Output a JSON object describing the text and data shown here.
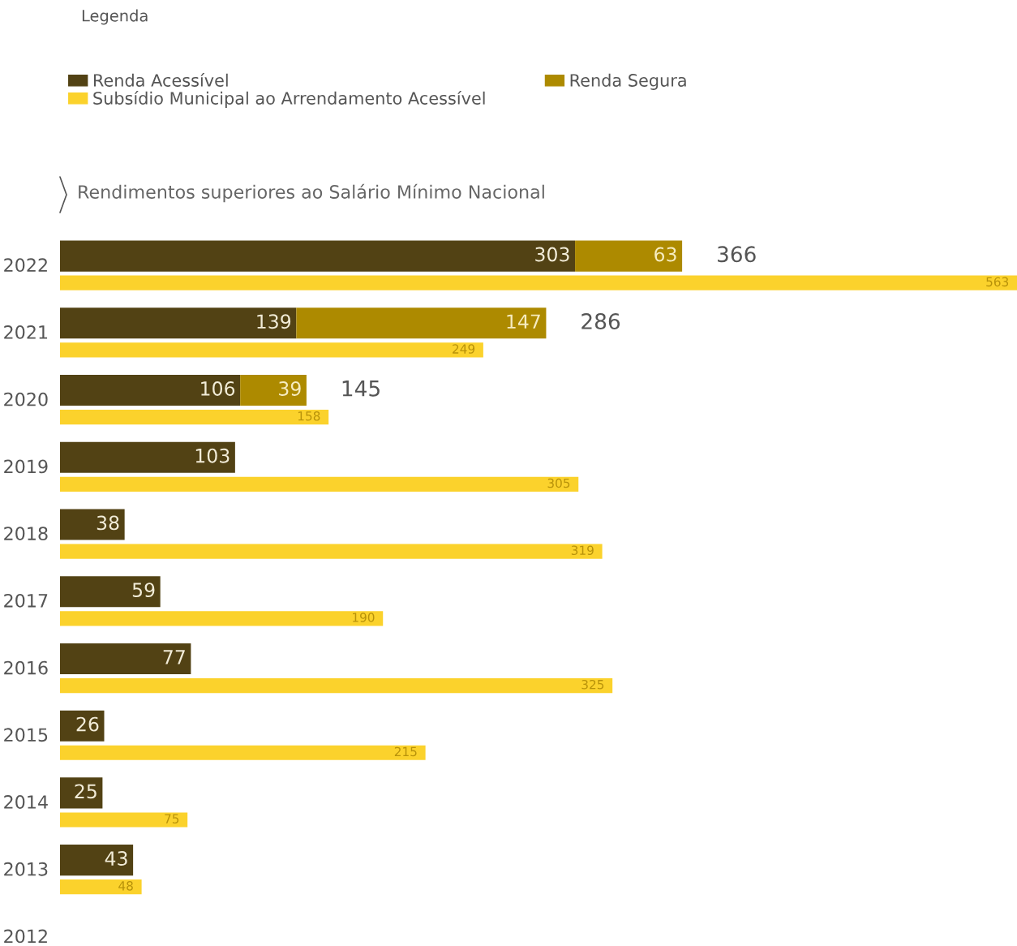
{
  "chart_data": [
    {
      "type": "bar",
      "orientation": "horizontal",
      "stacked": true,
      "title": "Rendimentos superiores ao Salário Mínimo Nacional",
      "legend_title": "Legenda",
      "legend": "top left",
      "categories": [
        "2022",
        "2021",
        "2020",
        "2019",
        "2018",
        "2017",
        "2016",
        "2015",
        "2014",
        "2013",
        "2012"
      ],
      "series": [
        {
          "name": "Renda Acessível",
          "color": "#524214",
          "values": [
            303,
            139,
            106,
            103,
            38,
            59,
            77,
            26,
            25,
            43,
            null
          ]
        },
        {
          "name": "Renda Segura",
          "color": "#ad8a00",
          "values": [
            63,
            147,
            39,
            null,
            null,
            null,
            null,
            null,
            null,
            null,
            null
          ]
        }
      ],
      "totals": [
        "366",
        "286",
        "145",
        null,
        null,
        null,
        null,
        null,
        null,
        null,
        null
      ],
      "data_labels": true,
      "xlim": [
        0,
        563
      ],
      "tick_labels": "y"
    },
    {
      "type": "bar",
      "orientation": "horizontal",
      "legend": "top left",
      "categories": [
        "2022",
        "2021",
        "2020",
        "2019",
        "2018",
        "2017",
        "2016",
        "2015",
        "2014",
        "2013",
        "2012"
      ],
      "series": [
        {
          "name": "Subsídio Municipal ao Arrendamento Acessível",
          "color": "#fbd22c",
          "values": [
            563,
            249,
            158,
            305,
            319,
            190,
            325,
            215,
            75,
            48,
            null
          ]
        }
      ],
      "data_labels": true,
      "xlim": [
        0,
        563
      ],
      "tick_labels": false
    }
  ]
}
